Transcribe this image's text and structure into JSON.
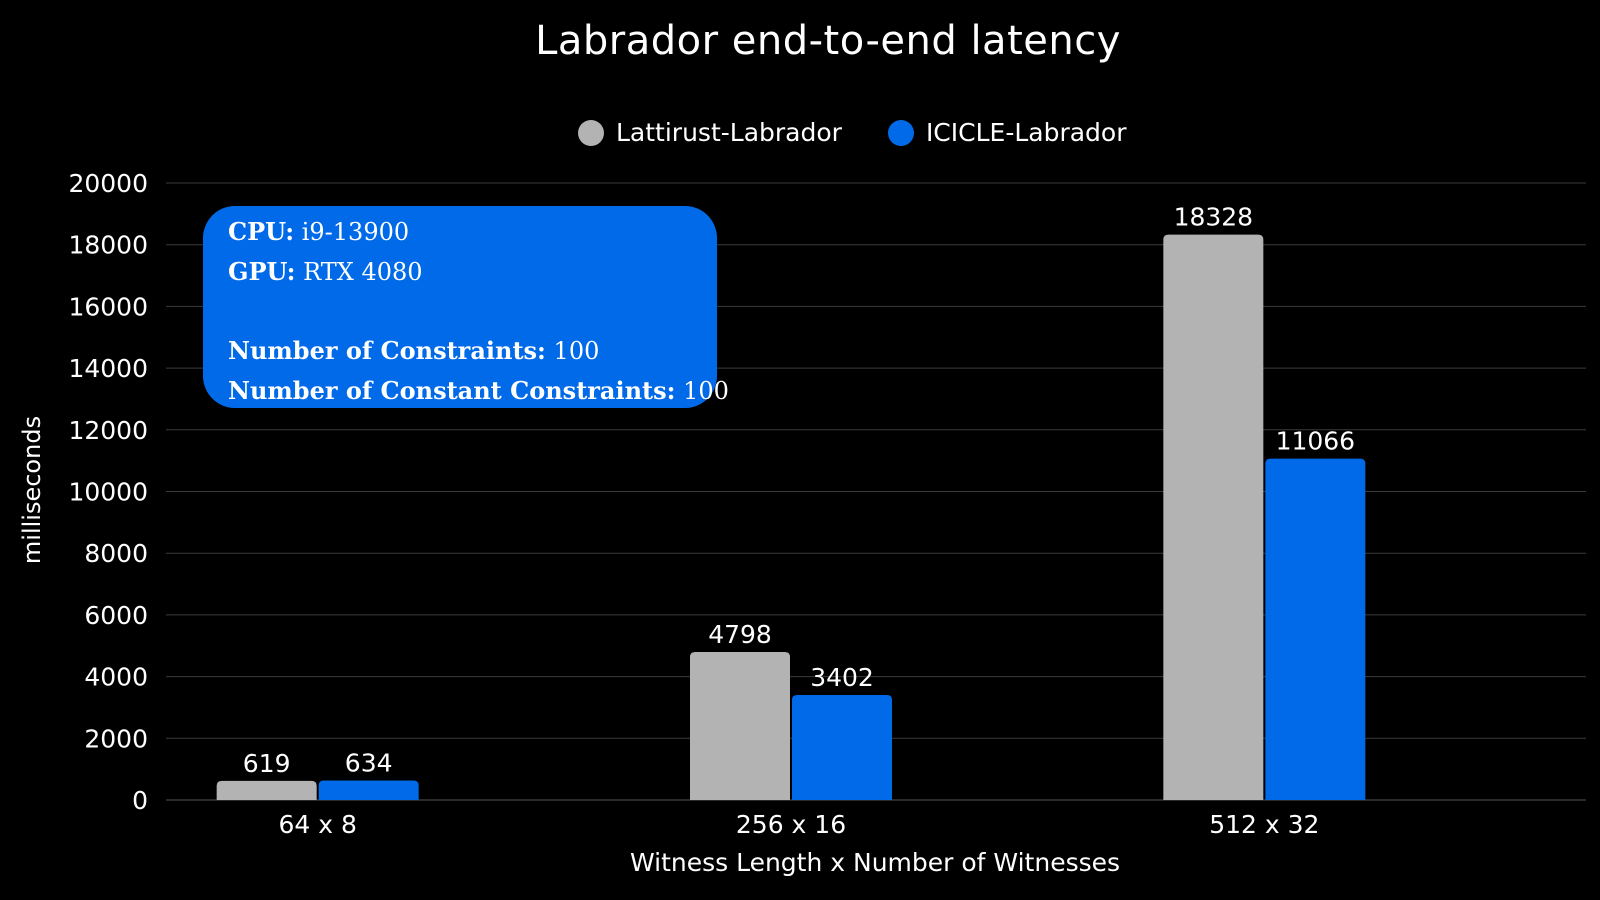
{
  "chart_data": {
    "type": "bar",
    "title": "Labrador end-to-end latency",
    "xlabel": "Witness Length x Number of Witnesses",
    "ylabel": "milliseconds",
    "categories": [
      "64 x 8",
      "256 x 16",
      "512 x 32"
    ],
    "series": [
      {
        "name": "Lattirust-Labrador",
        "color": "#b3b3b3",
        "values": [
          619,
          4798,
          18328
        ]
      },
      {
        "name": "ICICLE-Labrador",
        "color": "#006ae8",
        "values": [
          634,
          3402,
          11066
        ]
      }
    ],
    "ylim": [
      0,
      20000
    ],
    "yticks": [
      0,
      2000,
      4000,
      6000,
      8000,
      10000,
      12000,
      14000,
      16000,
      18000,
      20000
    ],
    "grid": true,
    "legend_position": "top-center",
    "data_labels": true
  },
  "info_box": {
    "cpu_label": "CPU:",
    "cpu_value": "i9-13900",
    "gpu_label": "GPU:",
    "gpu_value": "RTX 4080",
    "constraints_label": "Number of Constraints:",
    "constraints_value": "100",
    "constant_constraints_label": "Number of Constant Constraints:",
    "constant_constraints_value": "100"
  },
  "colors": {
    "background": "#000000",
    "grid": "#3a3a3a",
    "text": "#ffffff"
  }
}
